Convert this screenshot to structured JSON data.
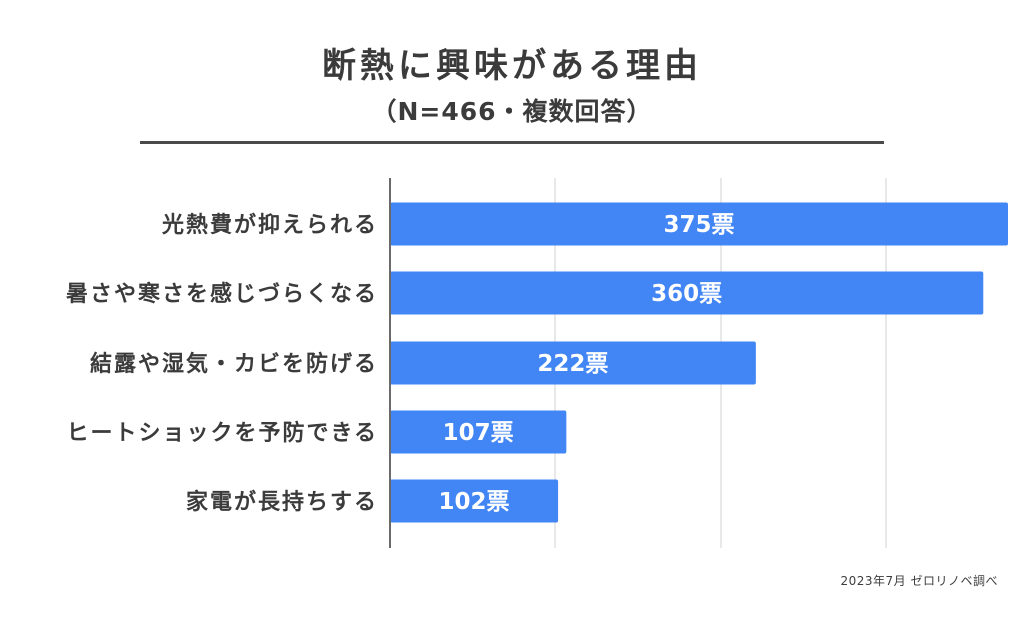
{
  "chart_data": {
    "type": "bar",
    "orientation": "horizontal",
    "title": "断熱に興味がある理由",
    "subtitle": "（N=466・複数回答）",
    "categories": [
      "光熱費が抑えられる",
      "暑さや寒さを感じづらくなる",
      "結露や湿気・カビを防げる",
      "ヒートショックを予防できる",
      "家電が長持ちする"
    ],
    "values": [
      375,
      360,
      222,
      107,
      102
    ],
    "value_suffix": "票",
    "xlim": [
      0,
      375
    ],
    "grid": true,
    "bar_color": "#4285F4",
    "source": "2023年7月  ゼロリノベ調べ"
  }
}
